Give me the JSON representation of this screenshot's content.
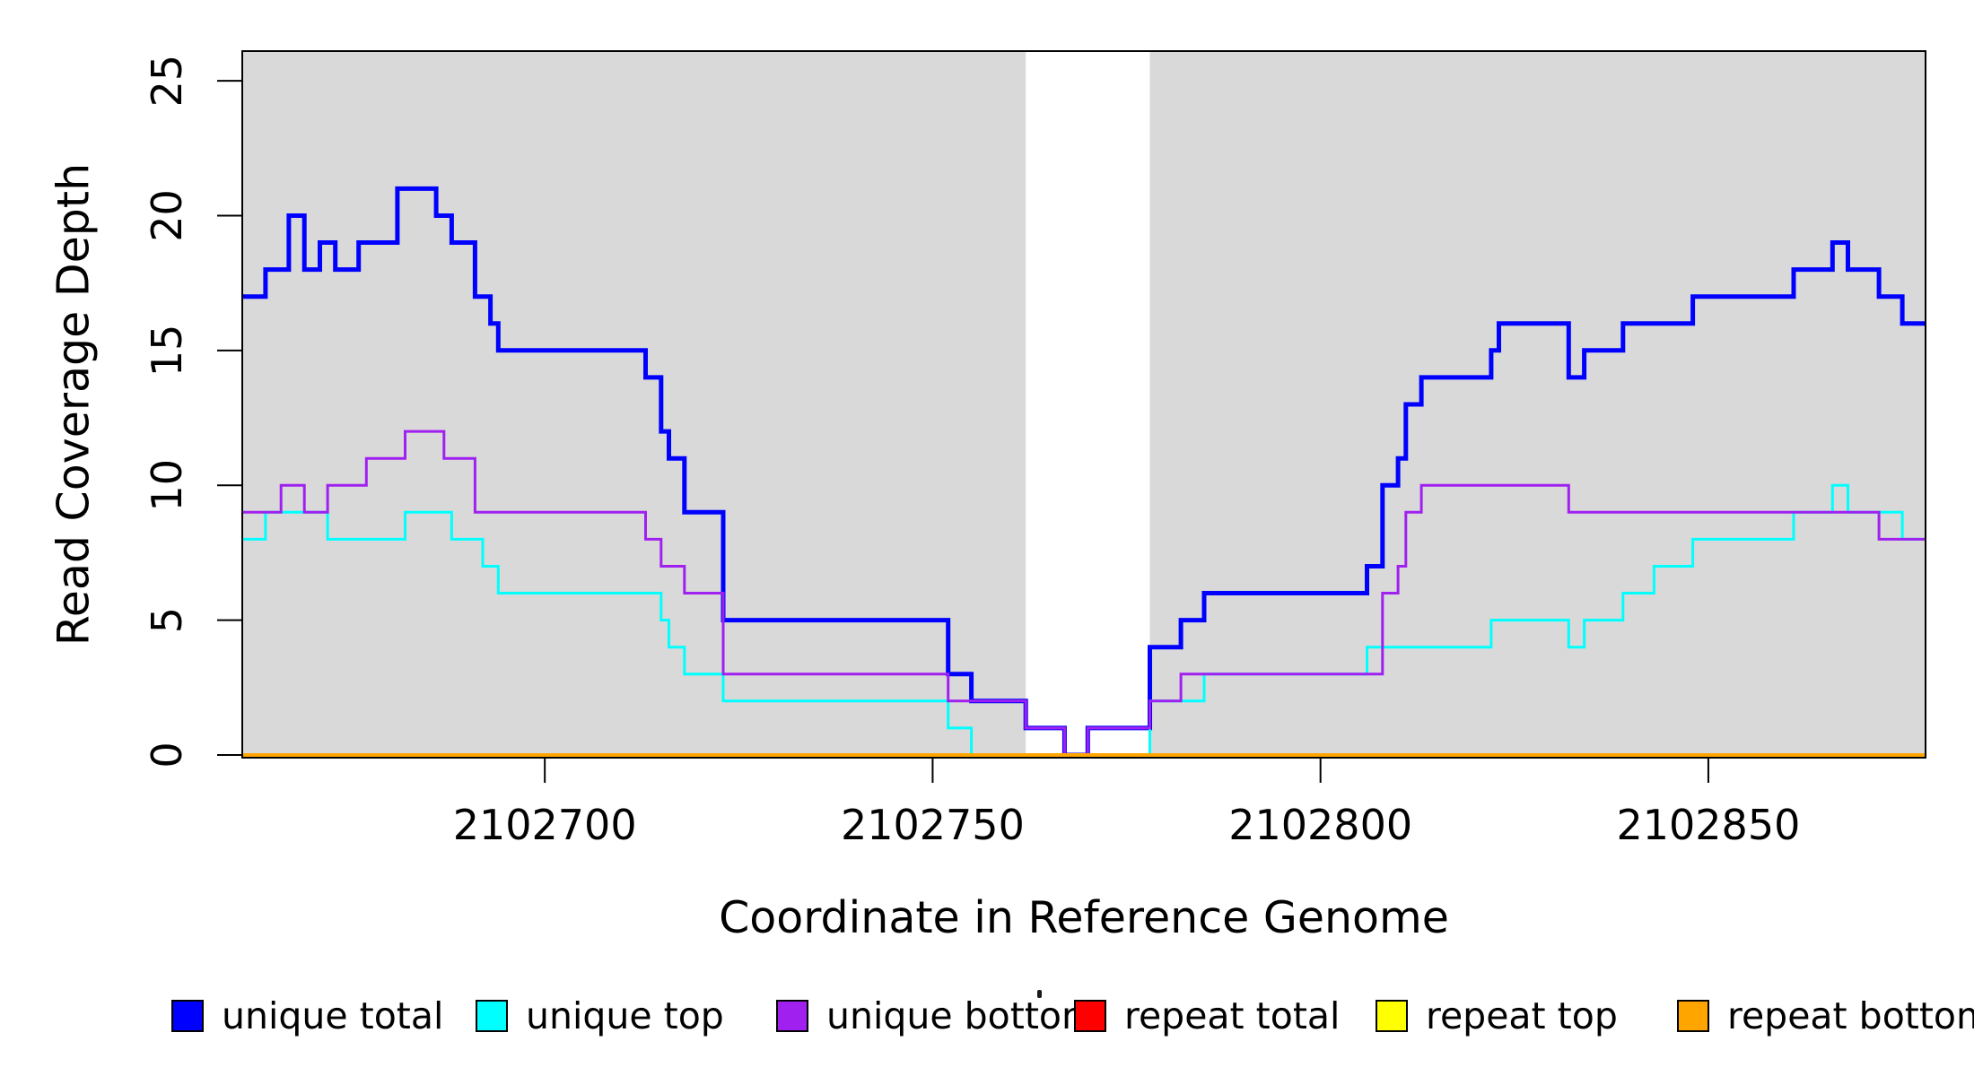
{
  "figure": {
    "background": "#FFFFFF",
    "plot_area_fill": "#FFFFFF",
    "box_color": "#000000"
  },
  "chart_data": {
    "type": "line",
    "subtype": "step-coverage",
    "title": "",
    "xlabel": "Coordinate in Reference Genome",
    "ylabel": "Read Coverage Depth",
    "xlim": [
      2102661,
      2102878
    ],
    "ylim": [
      0,
      26
    ],
    "x_ticks": [
      2102700,
      2102750,
      2102800,
      2102850
    ],
    "y_ticks": [
      0,
      5,
      10,
      15,
      20,
      25
    ],
    "grid": false,
    "legend_position": "bottom",
    "shaded_regions": [
      {
        "name": "gray-band-left",
        "x0": 2102661,
        "x1": 2102762,
        "color": "#D9D9D9"
      },
      {
        "name": "gray-band-right",
        "x0": 2102778,
        "x1": 2102878,
        "color": "#D9D9D9"
      }
    ],
    "series": [
      {
        "name": "unique total",
        "color": "#0000FF",
        "width": 5,
        "steps": [
          [
            2102661,
            17
          ],
          [
            2102664,
            18
          ],
          [
            2102667,
            20
          ],
          [
            2102669,
            18
          ],
          [
            2102671,
            19
          ],
          [
            2102673,
            18
          ],
          [
            2102676,
            19
          ],
          [
            2102681,
            21
          ],
          [
            2102686,
            20
          ],
          [
            2102688,
            19
          ],
          [
            2102691,
            17
          ],
          [
            2102693,
            16
          ],
          [
            2102694,
            15
          ],
          [
            2102713,
            14
          ],
          [
            2102715,
            12
          ],
          [
            2102716,
            11
          ],
          [
            2102718,
            9
          ],
          [
            2102723,
            5
          ],
          [
            2102752,
            3
          ],
          [
            2102755,
            2
          ],
          [
            2102762,
            1
          ],
          [
            2102767,
            0
          ],
          [
            2102770,
            1
          ],
          [
            2102778,
            4
          ],
          [
            2102782,
            5
          ],
          [
            2102785,
            6
          ],
          [
            2102806,
            7
          ],
          [
            2102808,
            10
          ],
          [
            2102810,
            11
          ],
          [
            2102811,
            13
          ],
          [
            2102813,
            14
          ],
          [
            2102822,
            15
          ],
          [
            2102823,
            16
          ],
          [
            2102832,
            14
          ],
          [
            2102834,
            15
          ],
          [
            2102839,
            16
          ],
          [
            2102848,
            17
          ],
          [
            2102861,
            18
          ],
          [
            2102866,
            19
          ],
          [
            2102868,
            18
          ],
          [
            2102872,
            17
          ],
          [
            2102875,
            16
          ]
        ]
      },
      {
        "name": "unique top",
        "color": "#00FFFF",
        "width": 3,
        "steps": [
          [
            2102661,
            8
          ],
          [
            2102664,
            9
          ],
          [
            2102672,
            8
          ],
          [
            2102682,
            9
          ],
          [
            2102688,
            8
          ],
          [
            2102692,
            7
          ],
          [
            2102694,
            6
          ],
          [
            2102715,
            5
          ],
          [
            2102716,
            4
          ],
          [
            2102718,
            3
          ],
          [
            2102723,
            2
          ],
          [
            2102752,
            1
          ],
          [
            2102755,
            0
          ],
          [
            2102778,
            2
          ],
          [
            2102785,
            3
          ],
          [
            2102806,
            4
          ],
          [
            2102822,
            5
          ],
          [
            2102832,
            4
          ],
          [
            2102834,
            5
          ],
          [
            2102839,
            6
          ],
          [
            2102843,
            7
          ],
          [
            2102848,
            8
          ],
          [
            2102861,
            9
          ],
          [
            2102866,
            10
          ],
          [
            2102868,
            9
          ],
          [
            2102875,
            8
          ]
        ]
      },
      {
        "name": "unique bottom",
        "color": "#A020F0",
        "width": 3,
        "steps": [
          [
            2102661,
            9
          ],
          [
            2102666,
            10
          ],
          [
            2102669,
            9
          ],
          [
            2102672,
            10
          ],
          [
            2102677,
            11
          ],
          [
            2102682,
            12
          ],
          [
            2102687,
            11
          ],
          [
            2102691,
            9
          ],
          [
            2102713,
            8
          ],
          [
            2102715,
            7
          ],
          [
            2102718,
            6
          ],
          [
            2102723,
            3
          ],
          [
            2102752,
            2
          ],
          [
            2102762,
            1
          ],
          [
            2102767,
            0
          ],
          [
            2102770,
            1
          ],
          [
            2102778,
            2
          ],
          [
            2102782,
            3
          ],
          [
            2102808,
            6
          ],
          [
            2102810,
            7
          ],
          [
            2102811,
            9
          ],
          [
            2102813,
            10
          ],
          [
            2102832,
            9
          ],
          [
            2102872,
            8
          ]
        ]
      },
      {
        "name": "repeat total",
        "color": "#FF0000",
        "width": 3,
        "steps": [
          [
            2102661,
            0
          ]
        ]
      },
      {
        "name": "repeat top",
        "color": "#FFFF00",
        "width": 3,
        "steps": [
          [
            2102661,
            0
          ]
        ]
      },
      {
        "name": "repeat bottom",
        "color": "#FFA500",
        "width": 4,
        "steps": [
          [
            2102661,
            0
          ]
        ]
      }
    ]
  },
  "legend": {
    "items": [
      {
        "label": "unique total",
        "color": "#0000FF"
      },
      {
        "label": "unique top",
        "color": "#00FFFF"
      },
      {
        "label": "unique bottom",
        "color": "#A020F0"
      },
      {
        "label": "repeat total",
        "color": "#FF0000"
      },
      {
        "label": "repeat top",
        "color": "#FFFF00"
      },
      {
        "label": "repeat bottom",
        "color": "#FFA500"
      }
    ]
  },
  "artifact": {
    "note": "tiny stray mark left of repeat-total legend entry"
  }
}
